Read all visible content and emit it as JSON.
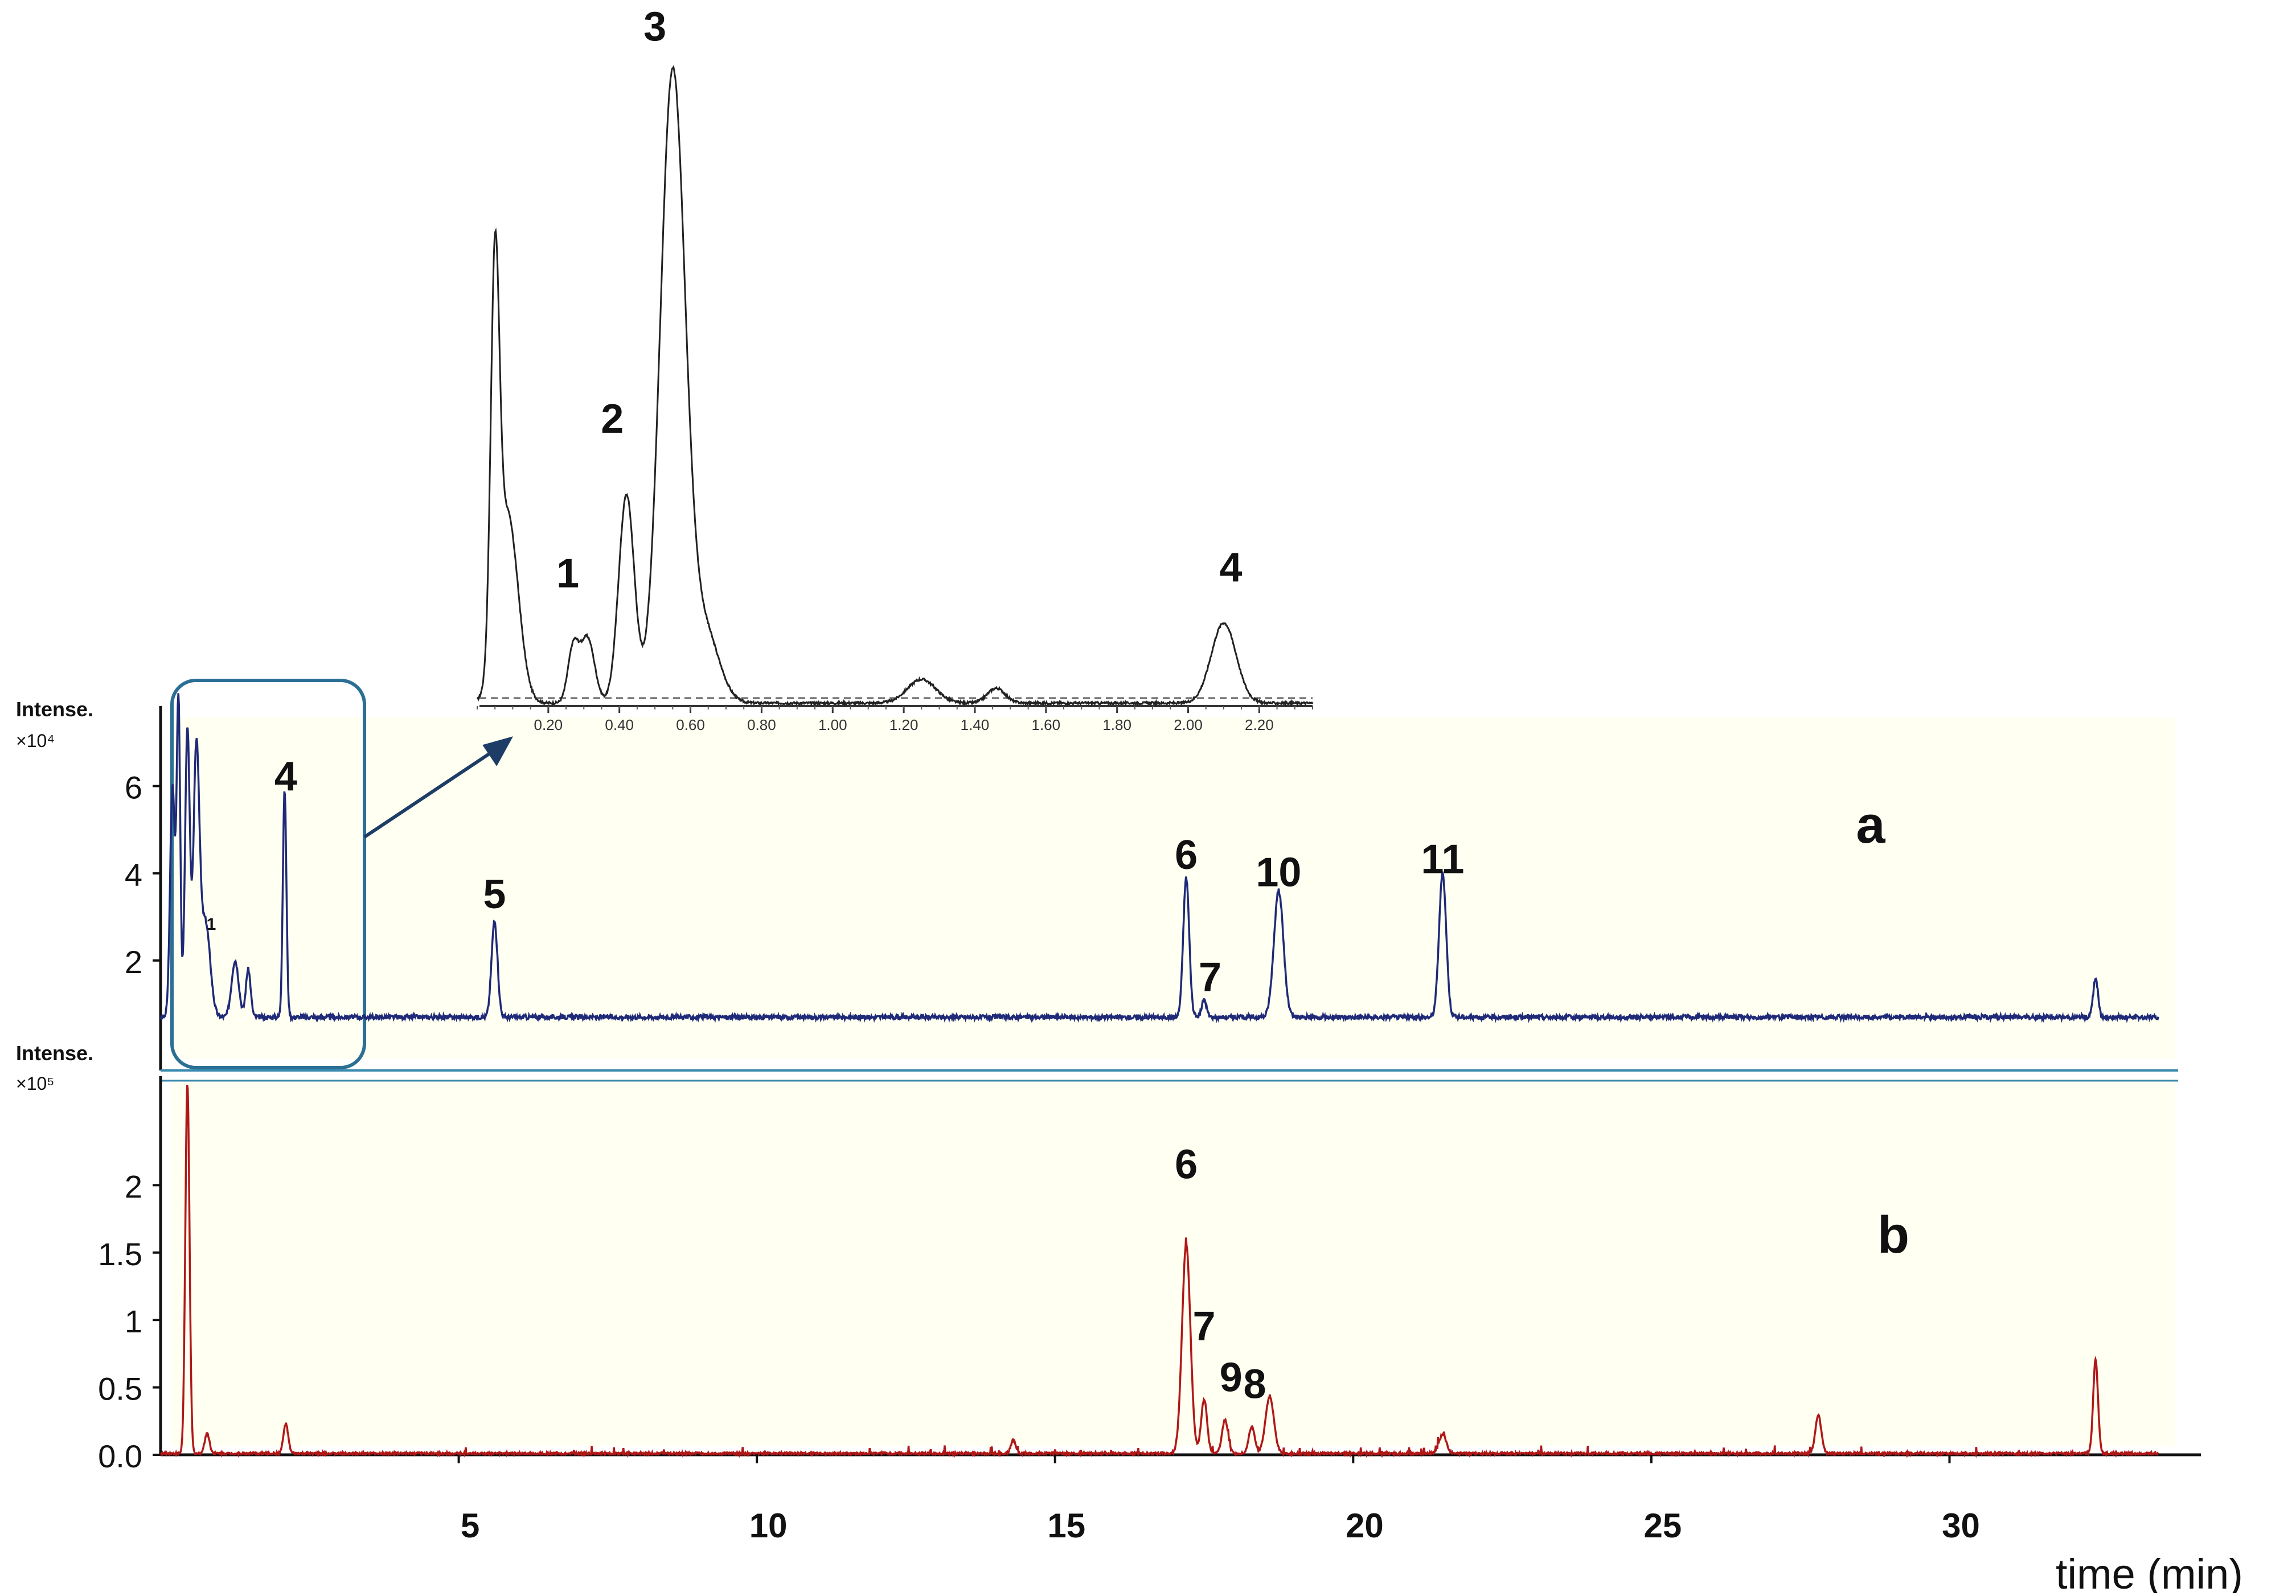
{
  "chart_data": [
    {
      "type": "line",
      "panel": "a",
      "ylabel_line1": "Intense.",
      "ylabel_line2": "×10⁴",
      "yticks": [
        "2",
        "4",
        "6"
      ],
      "ytick_values": [
        2,
        4,
        6
      ],
      "xlim": [
        0,
        33.5
      ],
      "ylim": [
        0,
        7.6
      ],
      "baseline": 0.7,
      "color": "#1f2a78",
      "peaks": [
        {
          "t": 0.2,
          "h": 5.3,
          "w": 0.04
        },
        {
          "t": 0.3,
          "h": 7.2,
          "w": 0.03
        },
        {
          "t": 0.45,
          "h": 6.6,
          "w": 0.04
        },
        {
          "t": 0.6,
          "h": 6.0,
          "w": 0.05
        },
        {
          "t": 0.75,
          "h": 2.2,
          "w": 0.08
        },
        {
          "t": 1.25,
          "h": 1.3,
          "w": 0.06
        },
        {
          "t": 1.47,
          "h": 1.1,
          "w": 0.04
        },
        {
          "t": 2.08,
          "h": 5.2,
          "w": 0.03
        },
        {
          "t": 5.6,
          "h": 2.2,
          "w": 0.05
        },
        {
          "t": 17.2,
          "h": 3.2,
          "w": 0.05
        },
        {
          "t": 17.5,
          "h": 0.4,
          "w": 0.04
        },
        {
          "t": 18.75,
          "h": 2.9,
          "w": 0.08
        },
        {
          "t": 21.5,
          "h": 3.3,
          "w": 0.06
        },
        {
          "t": 32.45,
          "h": 0.9,
          "w": 0.04
        }
      ],
      "labels": [
        {
          "text": "1",
          "t": 0.85,
          "y": 2.7,
          "small": true
        },
        {
          "text": "4",
          "t": 2.1,
          "y": 5.9
        },
        {
          "text": "5",
          "t": 5.6,
          "y": 3.2
        },
        {
          "text": "6",
          "t": 17.2,
          "y": 4.1
        },
        {
          "text": "7",
          "t": 17.6,
          "y": 1.3
        },
        {
          "text": "10",
          "t": 18.75,
          "y": 3.7
        },
        {
          "text": "11",
          "t": 21.5,
          "y": 4.0
        }
      ],
      "panel_letter": "a"
    },
    {
      "type": "line",
      "panel": "b",
      "ylabel_line1": "Intense.",
      "ylabel_line2": "×10⁵",
      "yticks": [
        "0.0",
        "0.5",
        "1",
        "1.5",
        "2"
      ],
      "ytick_values": [
        0,
        0.5,
        1.0,
        1.5,
        2.0
      ],
      "xlim": [
        0,
        33.5
      ],
      "ylim": [
        0,
        2.8
      ],
      "baseline": 0.01,
      "color": "#b01818",
      "xticks": [
        "5",
        "10",
        "15",
        "20",
        "25",
        "30"
      ],
      "xtick_values": [
        5,
        10,
        15,
        20,
        25,
        30
      ],
      "xlabel": "time (min)",
      "peaks": [
        {
          "t": 0.45,
          "h": 2.75,
          "w": 0.035
        },
        {
          "t": 0.78,
          "h": 0.15,
          "w": 0.04
        },
        {
          "t": 2.1,
          "h": 0.22,
          "w": 0.04
        },
        {
          "t": 14.3,
          "h": 0.1,
          "w": 0.04
        },
        {
          "t": 17.2,
          "h": 1.55,
          "w": 0.07
        },
        {
          "t": 17.5,
          "h": 0.4,
          "w": 0.05
        },
        {
          "t": 17.85,
          "h": 0.25,
          "w": 0.05
        },
        {
          "t": 18.3,
          "h": 0.2,
          "w": 0.05
        },
        {
          "t": 18.6,
          "h": 0.42,
          "w": 0.07
        },
        {
          "t": 21.5,
          "h": 0.14,
          "w": 0.06
        },
        {
          "t": 27.8,
          "h": 0.28,
          "w": 0.05
        },
        {
          "t": 32.45,
          "h": 0.7,
          "w": 0.04
        }
      ],
      "labels": [
        {
          "text": "6",
          "t": 17.2,
          "y": 2.05
        },
        {
          "text": "7",
          "t": 17.5,
          "y": 0.85
        },
        {
          "text": "9",
          "t": 17.95,
          "y": 0.47
        },
        {
          "text": "8",
          "t": 18.35,
          "y": 0.42
        }
      ],
      "panel_letter": "b"
    },
    {
      "type": "line",
      "panel": "inset",
      "xticks": [
        "0.20",
        "0.40",
        "0.60",
        "0.80",
        "1.00",
        "1.20",
        "1.40",
        "1.60",
        "1.80",
        "2.00",
        "2.20"
      ],
      "xtick_values": [
        0.2,
        0.4,
        0.6,
        0.8,
        1.0,
        1.2,
        1.4,
        1.6,
        1.8,
        2.0,
        2.2
      ],
      "xlim": [
        0,
        2.35
      ],
      "ylim": [
        0,
        11
      ],
      "baseline": 0.05,
      "color": "#222222",
      "peaks": [
        {
          "t": 0.05,
          "h": 6.3,
          "w": 0.012
        },
        {
          "t": 0.085,
          "h": 3.2,
          "w": 0.03
        },
        {
          "t": 0.27,
          "h": 0.9,
          "w": 0.015
        },
        {
          "t": 0.31,
          "h": 1.1,
          "w": 0.02
        },
        {
          "t": 0.42,
          "h": 3.5,
          "w": 0.022
        },
        {
          "t": 0.55,
          "h": 10.6,
          "w": 0.035
        },
        {
          "t": 0.64,
          "h": 1.2,
          "w": 0.04
        },
        {
          "t": 1.25,
          "h": 0.4,
          "w": 0.04
        },
        {
          "t": 1.46,
          "h": 0.25,
          "w": 0.025
        },
        {
          "t": 2.1,
          "h": 1.35,
          "w": 0.035
        }
      ],
      "labels": [
        {
          "text": "1",
          "t": 0.255,
          "y": 2.0
        },
        {
          "text": "2",
          "t": 0.38,
          "y": 4.6
        },
        {
          "text": "3",
          "t": 0.5,
          "y": 11.2
        },
        {
          "text": "4",
          "t": 2.12,
          "y": 2.1
        }
      ]
    }
  ]
}
